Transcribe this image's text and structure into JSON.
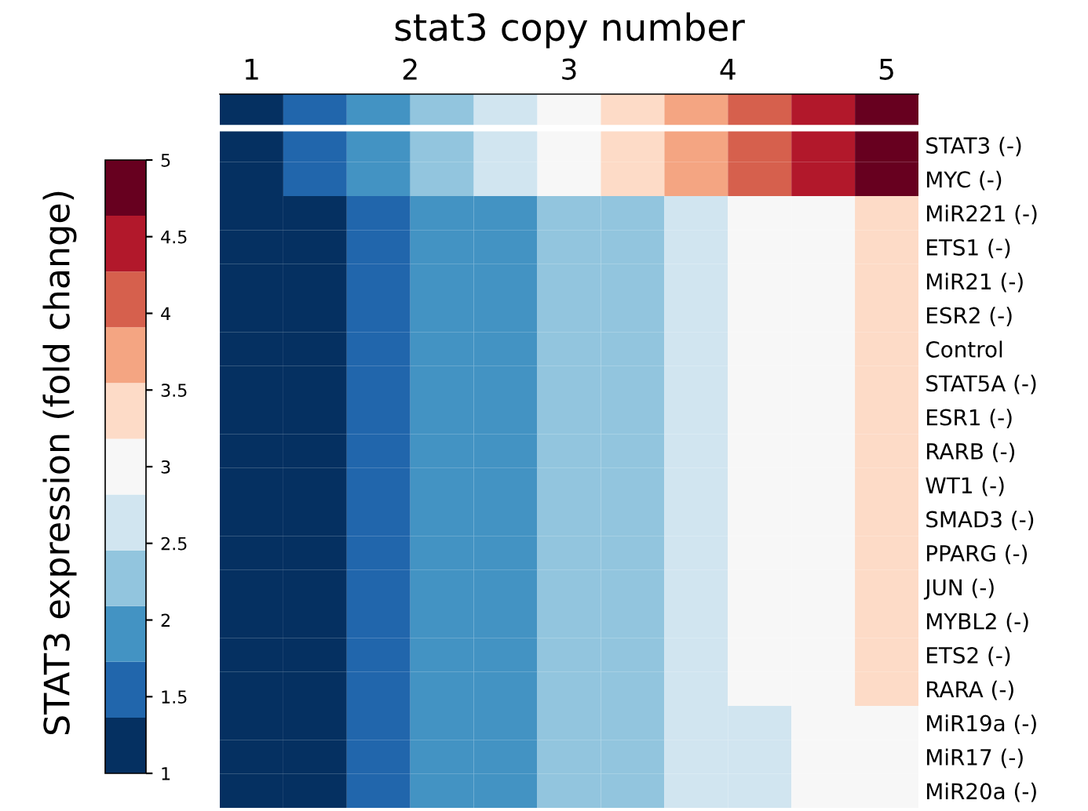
{
  "chart_data": {
    "type": "heatmap",
    "x2label": "stat3 copy number",
    "categories": [
      null,
      null,
      null,
      null,
      null,
      null,
      null,
      null,
      null,
      null,
      null
    ],
    "x2lim": [
      0.8,
      5.2
    ],
    "x2ticks": [
      1,
      2,
      3,
      4,
      5
    ],
    "clim": [
      1,
      5
    ],
    "cticks": [
      1,
      1.5,
      2,
      2.5,
      3,
      3.5,
      4,
      4.5,
      5
    ],
    "clabel": "STAT3 expression (fold change)",
    "colors": [
      "#053061",
      "#2166ac",
      "#4393c3",
      "#92c5de",
      "#d1e5f0",
      "#f7f7f7",
      "#fddbc7",
      "#f4a582",
      "#d6604d",
      "#b2182b",
      "#67001f"
    ],
    "y_categories": [
      null,
      "STAT3 (-)",
      "MYC (-)",
      "MiR221 (-)",
      "ETS1 (-)",
      "MiR21 (-)",
      "ESR2 (-)",
      "Control",
      "STAT5A (-)",
      "ESR1 (-)",
      "RARB (-)",
      "WT1 (-)",
      "SMAD3 (-)",
      "PPARG (-)",
      "JUN (-)",
      "MYBL2 (-)",
      "ETS2 (-)",
      "RARA (-)",
      "MiR19a (-)",
      "MiR17 (-)",
      "MiR20a (-)"
    ],
    "cells": [
      [
        1,
        1.4,
        1.8,
        2.2,
        2.6,
        3,
        3.4,
        3.8,
        4.2,
        4.6,
        5
      ],
      [
        1,
        1.4,
        1.8,
        2.2,
        2.6,
        3,
        3.4,
        3.8,
        4.2,
        4.6,
        5
      ],
      [
        1,
        1.4,
        1.8,
        2.2,
        2.6,
        3,
        3.4,
        3.8,
        4.2,
        4.6,
        5
      ],
      [
        1,
        1,
        1.4,
        1.8,
        1.8,
        2.2,
        2.2,
        2.6,
        3,
        3,
        3.4
      ],
      [
        1,
        1,
        1.4,
        1.8,
        1.8,
        2.2,
        2.2,
        2.6,
        3,
        3,
        3.4
      ],
      [
        1,
        1,
        1.4,
        1.8,
        1.8,
        2.2,
        2.2,
        2.6,
        3,
        3,
        3.4
      ],
      [
        1,
        1,
        1.4,
        1.8,
        1.8,
        2.2,
        2.2,
        2.6,
        3,
        3,
        3.4
      ],
      [
        1,
        1,
        1.4,
        1.8,
        1.8,
        2.2,
        2.2,
        2.6,
        3,
        3,
        3.4
      ],
      [
        1,
        1,
        1.4,
        1.8,
        1.8,
        2.2,
        2.2,
        2.6,
        3,
        3,
        3.4
      ],
      [
        1,
        1,
        1.4,
        1.8,
        1.8,
        2.2,
        2.2,
        2.6,
        3,
        3,
        3.4
      ],
      [
        1,
        1,
        1.4,
        1.8,
        1.8,
        2.2,
        2.2,
        2.6,
        3,
        3,
        3.4
      ],
      [
        1,
        1,
        1.4,
        1.8,
        1.8,
        2.2,
        2.2,
        2.6,
        3,
        3,
        3.4
      ],
      [
        1,
        1,
        1.4,
        1.8,
        1.8,
        2.2,
        2.2,
        2.6,
        3,
        3,
        3.4
      ],
      [
        1,
        1,
        1.4,
        1.8,
        1.8,
        2.2,
        2.2,
        2.6,
        3,
        3,
        3.4
      ],
      [
        1,
        1,
        1.4,
        1.8,
        1.8,
        2.2,
        2.2,
        2.6,
        3,
        3,
        3.4
      ],
      [
        1,
        1,
        1.4,
        1.8,
        1.8,
        2.2,
        2.2,
        2.6,
        3,
        3,
        3.4
      ],
      [
        1,
        1,
        1.4,
        1.8,
        1.8,
        2.2,
        2.2,
        2.6,
        3,
        3,
        3.4
      ],
      [
        1,
        1,
        1.4,
        1.8,
        1.8,
        2.2,
        2.2,
        2.6,
        3,
        3,
        3.4
      ],
      [
        1,
        1,
        1.4,
        1.8,
        1.8,
        2.2,
        2.2,
        2.6,
        2.6,
        3,
        3
      ],
      [
        1,
        1,
        1.4,
        1.8,
        1.8,
        2.2,
        2.2,
        2.6,
        2.6,
        3,
        3
      ],
      [
        1,
        1,
        1.4,
        1.8,
        1.8,
        2.2,
        2.2,
        2.6,
        2.6,
        3,
        3
      ]
    ]
  }
}
